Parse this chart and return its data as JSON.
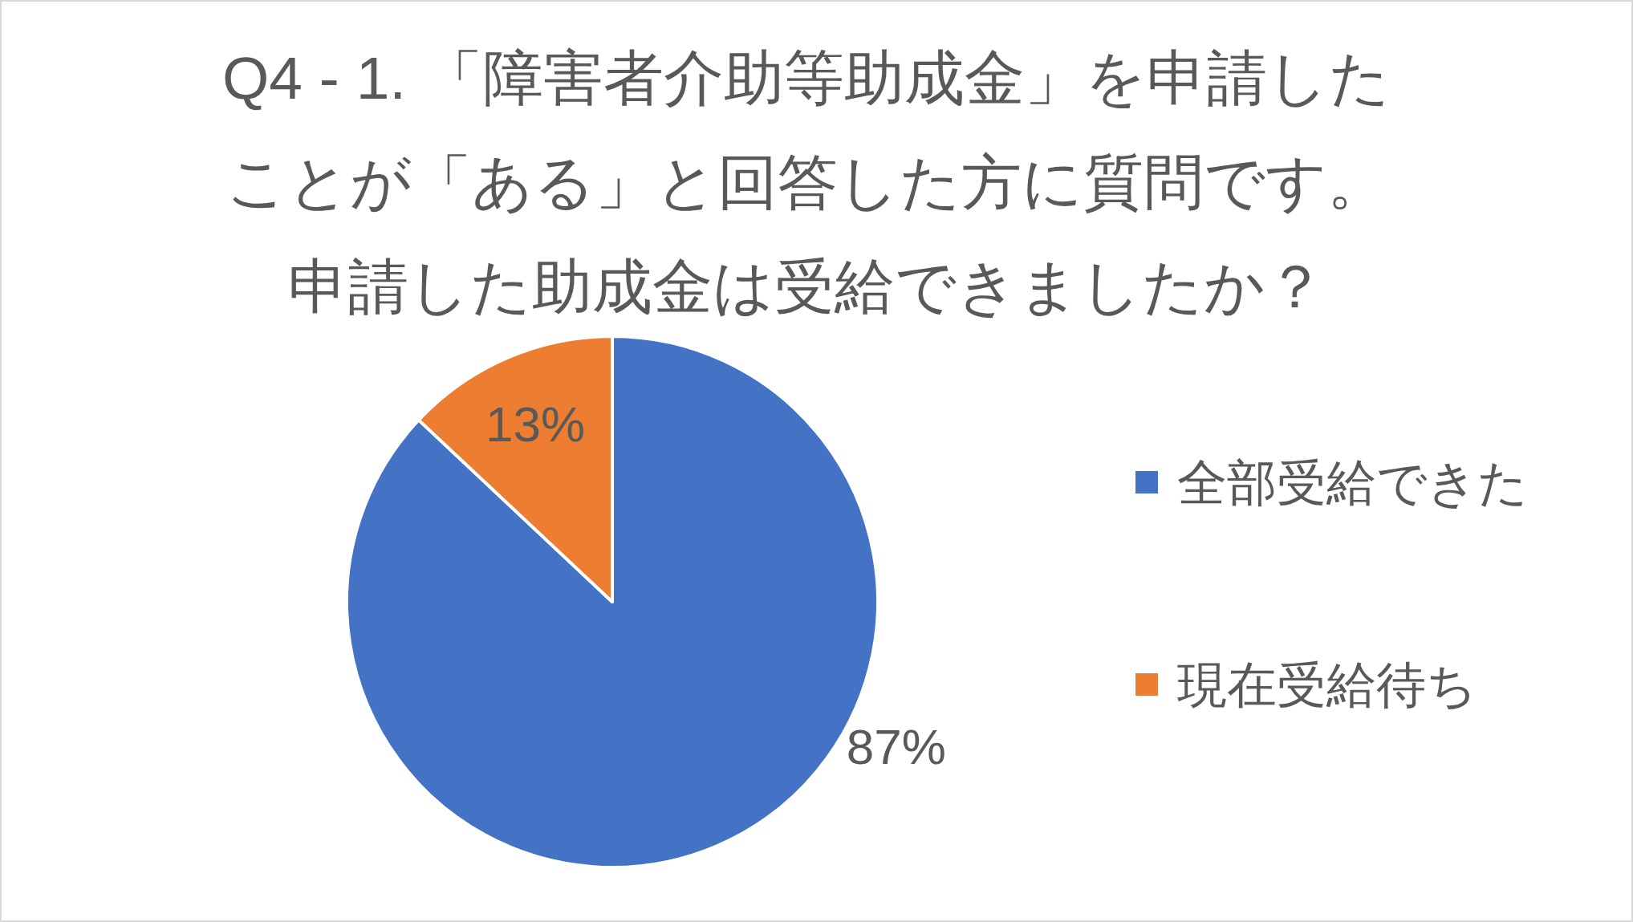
{
  "chart_data": {
    "type": "pie",
    "title": "Q4 - 1. 「障害者介助等助成金」を申請したことが「ある」と回答した方に質問です。申請した助成金は受給できましたか？",
    "categories": [
      "全部受給できた",
      "現在受給待ち"
    ],
    "values": [
      87,
      13
    ],
    "colors": [
      "#4472c4",
      "#ed7d31"
    ],
    "value_labels": [
      "87%",
      "13%"
    ],
    "legend": "right"
  }
}
